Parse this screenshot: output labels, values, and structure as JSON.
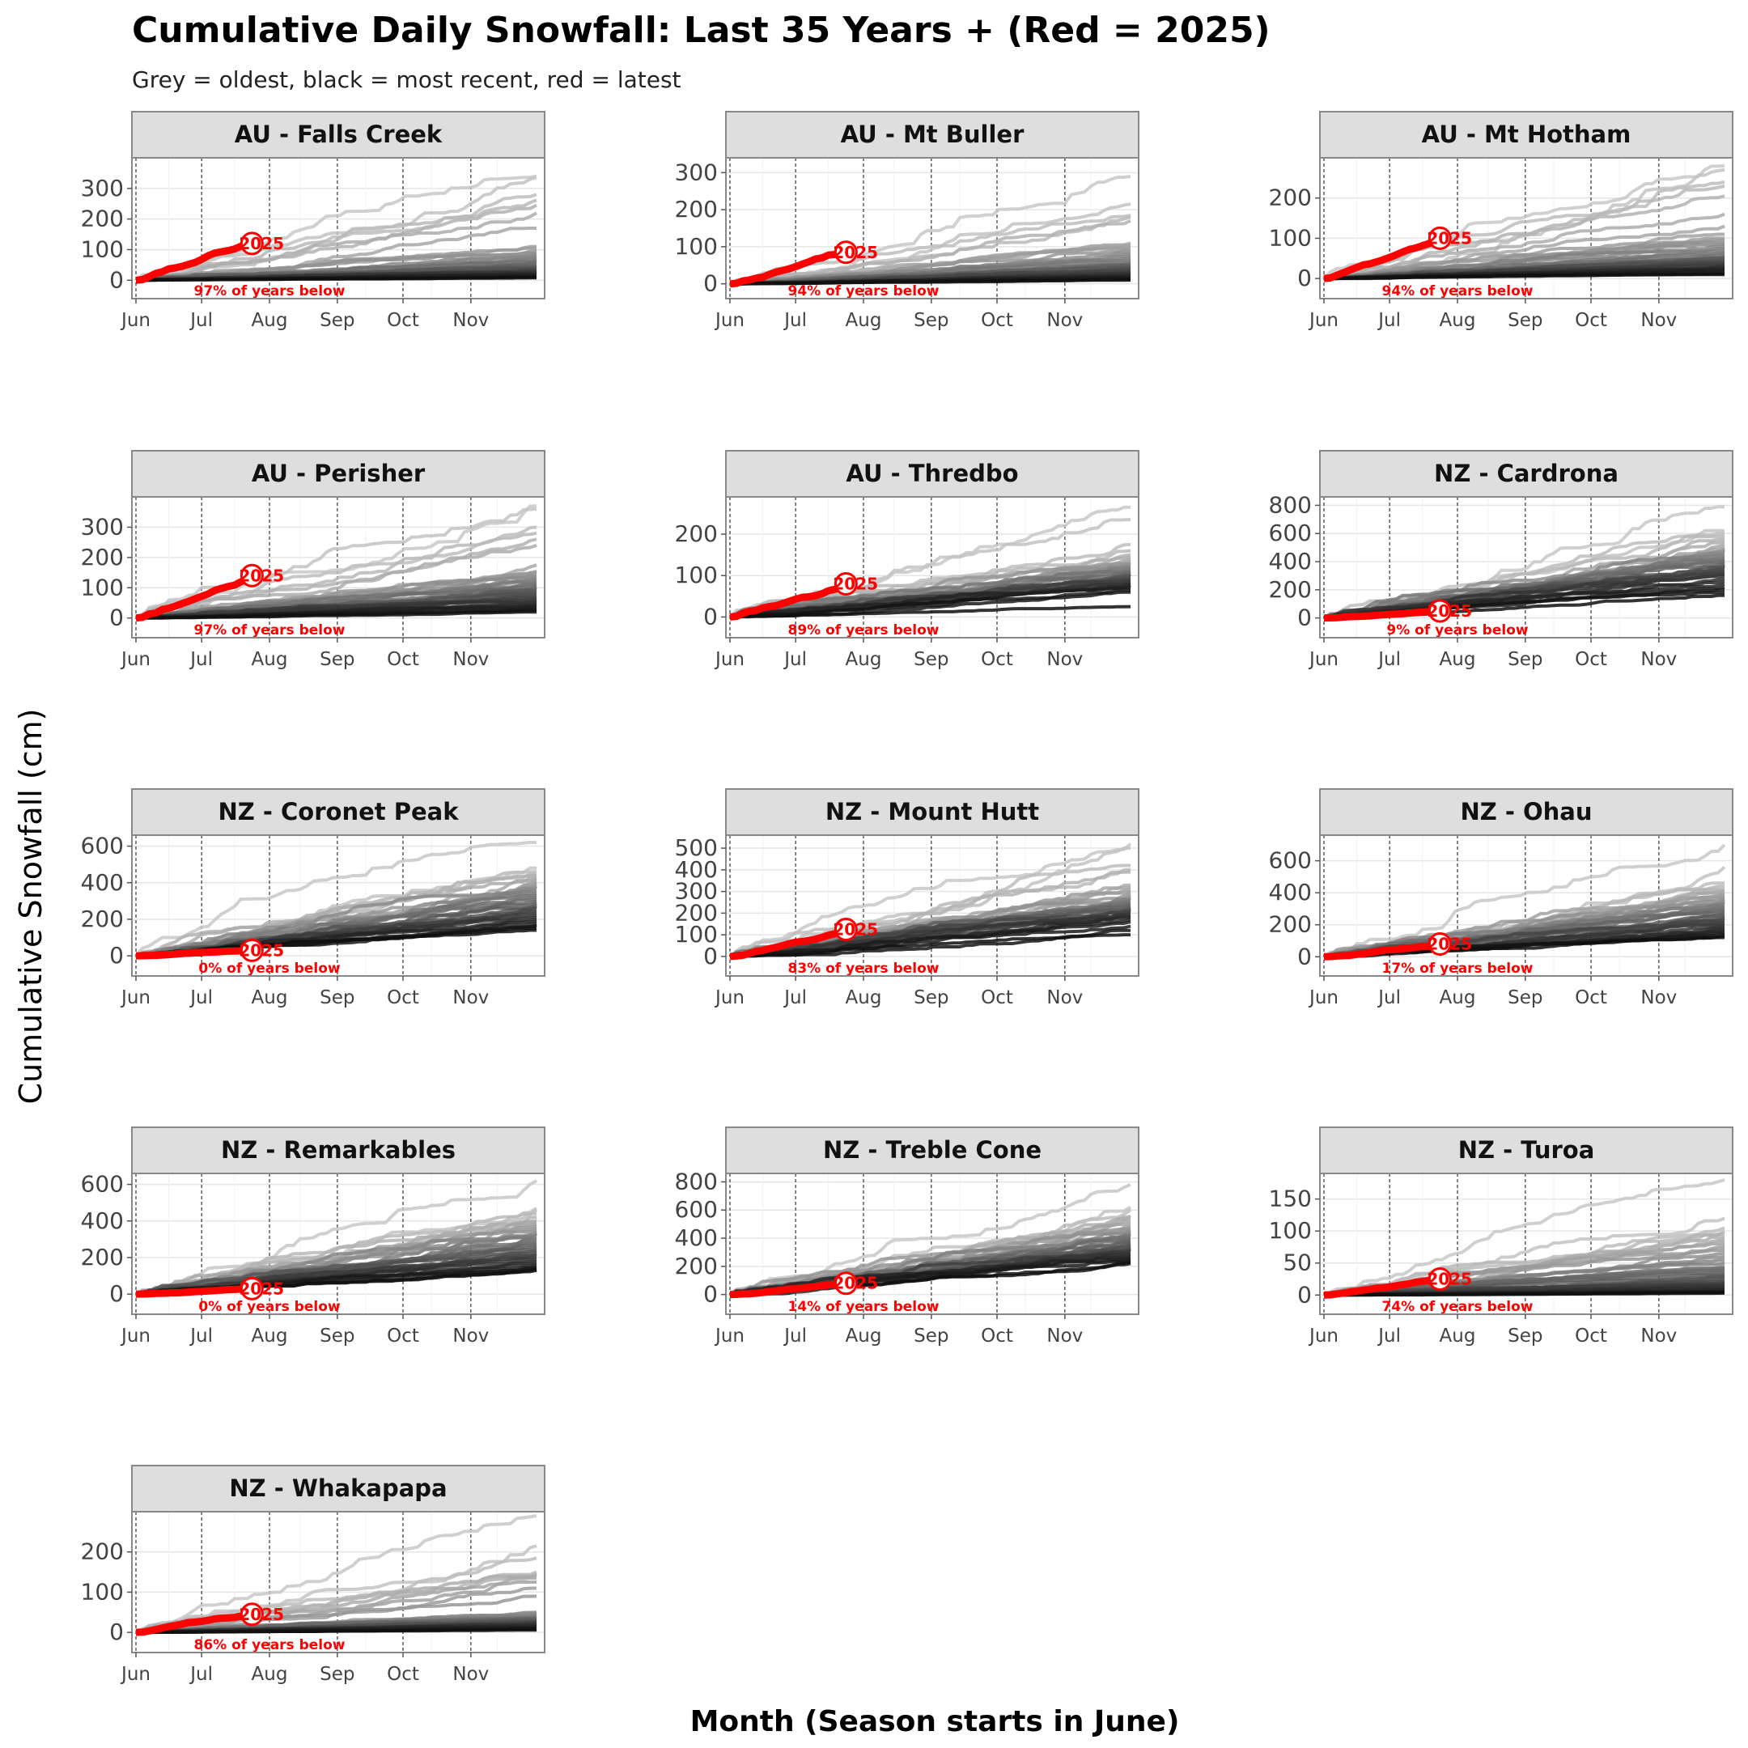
{
  "chart_data": {
    "type": "line",
    "title": "Cumulative Daily Snowfall: Last 35 Years + (Red = 2025)",
    "subtitle": "Grey = oldest, black = most recent, red = latest",
    "xlabel": "Month (Season starts in June)",
    "ylabel": "Cumulative Snowfall (cm)",
    "x_ticks": [
      "Jun",
      "Jul",
      "Aug",
      "Sep",
      "Oct",
      "Nov"
    ],
    "x_tick_days": [
      0,
      30,
      61,
      92,
      122,
      153
    ],
    "season_days": 183,
    "latest_year_label": "2025",
    "latest_year_color": "#ff0000",
    "grid": true,
    "panels": [
      {
        "name": "AU - Falls Creek",
        "yticks": [
          0,
          100,
          200,
          300
        ],
        "ylim": [
          -60,
          400
        ],
        "latest_day": 53,
        "latest_value": 120,
        "pct_text": "97% of years below",
        "series_finals": [
          340,
          335,
          280,
          262,
          245,
          220,
          170,
          110,
          105,
          95,
          90,
          85,
          80,
          75,
          70,
          65,
          60,
          55,
          50,
          45,
          42,
          40,
          38,
          35,
          32,
          30,
          28,
          25,
          22,
          20,
          18,
          15,
          12,
          10,
          8
        ]
      },
      {
        "name": "AU - Mt Buller",
        "yticks": [
          0,
          100,
          200,
          300
        ],
        "ylim": [
          -40,
          340
        ],
        "latest_day": 53,
        "latest_value": 85,
        "pct_text": "94% of years below",
        "series_finals": [
          290,
          215,
          185,
          180,
          170,
          110,
          105,
          100,
          95,
          90,
          85,
          80,
          75,
          70,
          65,
          60,
          55,
          52,
          50,
          48,
          45,
          42,
          40,
          38,
          35,
          32,
          30,
          28,
          25,
          22,
          20,
          18,
          15,
          12,
          10
        ]
      },
      {
        "name": "AU - Mt Hotham",
        "yticks": [
          0,
          100,
          200
        ],
        "ylim": [
          -50,
          300
        ],
        "latest_day": 53,
        "latest_value": 100,
        "pct_text": "94% of years below",
        "series_finals": [
          280,
          270,
          240,
          230,
          205,
          160,
          130,
          110,
          100,
          95,
          90,
          85,
          80,
          75,
          70,
          65,
          60,
          55,
          52,
          50,
          48,
          45,
          42,
          40,
          38,
          35,
          32,
          30,
          28,
          25,
          22,
          20,
          15,
          12,
          10
        ]
      },
      {
        "name": "AU - Perisher",
        "yticks": [
          0,
          100,
          200,
          300
        ],
        "ylim": [
          -65,
          400
        ],
        "latest_day": 53,
        "latest_value": 140,
        "pct_text": "97% of years below",
        "series_finals": [
          370,
          360,
          300,
          280,
          260,
          240,
          175,
          155,
          150,
          145,
          140,
          135,
          130,
          125,
          120,
          115,
          110,
          105,
          100,
          95,
          90,
          85,
          80,
          75,
          70,
          65,
          60,
          55,
          50,
          45,
          40,
          35,
          30,
          25,
          20
        ]
      },
      {
        "name": "AU - Thredbo",
        "yticks": [
          0,
          100,
          200
        ],
        "ylim": [
          -50,
          290
        ],
        "latest_day": 53,
        "latest_value": 80,
        "pct_text": "89% of years below",
        "series_finals": [
          265,
          235,
          175,
          160,
          150,
          145,
          140,
          135,
          130,
          128,
          125,
          122,
          120,
          118,
          115,
          112,
          110,
          108,
          105,
          102,
          100,
          98,
          95,
          92,
          90,
          88,
          85,
          82,
          80,
          78,
          75,
          70,
          65,
          60,
          25
        ]
      },
      {
        "name": "NZ - Cardrona",
        "yticks": [
          0,
          200,
          400,
          600,
          800
        ],
        "ylim": [
          -140,
          860
        ],
        "latest_day": 53,
        "latest_value": 50,
        "pct_text": "9% of years below",
        "series_finals": [
          790,
          620,
          600,
          580,
          560,
          540,
          520,
          500,
          490,
          480,
          470,
          460,
          450,
          440,
          430,
          420,
          410,
          400,
          390,
          380,
          370,
          360,
          350,
          340,
          330,
          320,
          310,
          300,
          280,
          260,
          240,
          220,
          200,
          180,
          160
        ]
      },
      {
        "name": "NZ - Coronet Peak",
        "yticks": [
          0,
          200,
          400,
          600
        ],
        "ylim": [
          -110,
          660
        ],
        "latest_day": 53,
        "latest_value": 30,
        "pct_text": "0% of years below",
        "series_finals": [
          620,
          480,
          460,
          450,
          440,
          430,
          420,
          410,
          400,
          390,
          380,
          370,
          360,
          350,
          340,
          330,
          320,
          310,
          300,
          290,
          280,
          270,
          260,
          250,
          240,
          230,
          220,
          210,
          200,
          190,
          180,
          170,
          160,
          150,
          140
        ]
      },
      {
        "name": "NZ - Mount Hutt",
        "yticks": [
          0,
          100,
          200,
          300,
          400,
          500
        ],
        "ylim": [
          -90,
          560
        ],
        "latest_day": 53,
        "latest_value": 125,
        "pct_text": "83% of years below",
        "series_finals": [
          520,
          500,
          420,
          400,
          390,
          330,
          320,
          310,
          300,
          290,
          280,
          270,
          265,
          260,
          255,
          250,
          245,
          240,
          235,
          230,
          225,
          220,
          215,
          210,
          205,
          200,
          195,
          190,
          185,
          180,
          170,
          160,
          140,
          120,
          100
        ]
      },
      {
        "name": "NZ - Ohau",
        "yticks": [
          0,
          200,
          400,
          600
        ],
        "ylim": [
          -120,
          760
        ],
        "latest_day": 53,
        "latest_value": 80,
        "pct_text": "17% of years below",
        "series_finals": [
          700,
          560,
          460,
          440,
          420,
          410,
          400,
          390,
          380,
          370,
          360,
          350,
          340,
          330,
          320,
          310,
          300,
          290,
          280,
          270,
          260,
          250,
          240,
          230,
          220,
          210,
          200,
          190,
          180,
          170,
          160,
          150,
          140,
          130,
          120
        ]
      },
      {
        "name": "NZ - Remarkables",
        "yticks": [
          0,
          200,
          400,
          600
        ],
        "ylim": [
          -110,
          660
        ],
        "latest_day": 53,
        "latest_value": 30,
        "pct_text": "0% of years below",
        "series_finals": [
          620,
          470,
          460,
          440,
          420,
          400,
          390,
          380,
          370,
          360,
          350,
          340,
          330,
          320,
          310,
          300,
          290,
          280,
          270,
          260,
          250,
          240,
          230,
          220,
          210,
          200,
          190,
          180,
          170,
          160,
          150,
          145,
          140,
          135,
          130
        ]
      },
      {
        "name": "NZ - Treble Cone",
        "yticks": [
          0,
          200,
          400,
          600,
          800
        ],
        "ylim": [
          -140,
          860
        ],
        "latest_day": 53,
        "latest_value": 80,
        "pct_text": "14% of years below",
        "series_finals": [
          780,
          620,
          600,
          560,
          550,
          540,
          520,
          500,
          480,
          470,
          460,
          450,
          440,
          430,
          420,
          410,
          400,
          390,
          380,
          370,
          360,
          350,
          340,
          330,
          320,
          310,
          300,
          290,
          280,
          270,
          260,
          250,
          240,
          230,
          220
        ]
      },
      {
        "name": "NZ - Turoa",
        "yticks": [
          0,
          50,
          100,
          150
        ],
        "ylim": [
          -30,
          190
        ],
        "latest_day": 53,
        "latest_value": 25,
        "pct_text": "74% of years below",
        "series_finals": [
          180,
          120,
          105,
          100,
          95,
          90,
          85,
          80,
          75,
          70,
          65,
          60,
          55,
          50,
          45,
          42,
          40,
          38,
          35,
          32,
          30,
          28,
          25,
          22,
          20,
          18,
          16,
          14,
          12,
          10,
          8,
          6,
          5,
          4,
          3
        ]
      },
      {
        "name": "NZ - Whakapapa",
        "yticks": [
          0,
          100,
          200
        ],
        "ylim": [
          -50,
          300
        ],
        "latest_day": 53,
        "latest_value": 45,
        "pct_text": "86% of years below",
        "series_finals": [
          290,
          215,
          185,
          150,
          145,
          140,
          135,
          125,
          110,
          90,
          50,
          48,
          45,
          42,
          40,
          38,
          36,
          35,
          34,
          32,
          30,
          28,
          27,
          26,
          25,
          24,
          22,
          20,
          18,
          16,
          14,
          12,
          10,
          8,
          6
        ]
      }
    ]
  }
}
